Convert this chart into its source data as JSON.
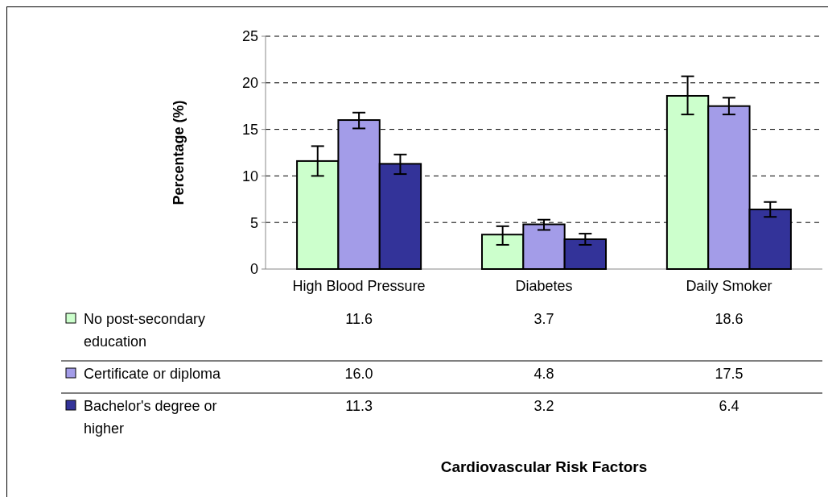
{
  "chart_data": {
    "type": "bar",
    "ylabel": "Percentage (%)",
    "annotations": [
      "Cardiovascular Risk Factors"
    ],
    "categories": [
      "High Blood Pressure",
      "Diabetes",
      "Daily Smoker"
    ],
    "series": [
      {
        "name": "No post-secondary education",
        "color": "#ccffcc",
        "values": [
          11.6,
          3.7,
          18.6
        ],
        "value_labels": [
          "11.6",
          "3.7",
          "18.6"
        ],
        "errors": [
          [
            10.0,
            13.2
          ],
          [
            2.6,
            4.6
          ],
          [
            16.6,
            20.7
          ]
        ]
      },
      {
        "name": "Certificate or diploma",
        "color": "#a39ce8",
        "values": [
          16.0,
          4.8,
          17.5
        ],
        "value_labels": [
          "16.0",
          "4.8",
          "17.5"
        ],
        "errors": [
          [
            15.1,
            16.8
          ],
          [
            4.2,
            5.3
          ],
          [
            16.6,
            18.4
          ]
        ]
      },
      {
        "name": "Bachelor's degree or higher",
        "color": "#333399",
        "values": [
          11.3,
          3.2,
          6.4
        ],
        "value_labels": [
          "11.3",
          "3.2",
          "6.4"
        ],
        "errors": [
          [
            10.2,
            12.3
          ],
          [
            2.6,
            3.8
          ],
          [
            5.6,
            7.2
          ]
        ]
      }
    ],
    "ylim": [
      0,
      25
    ],
    "yticks": [
      0,
      5,
      10,
      15,
      20,
      25
    ],
    "grid": "y",
    "legend": "bottom left"
  }
}
